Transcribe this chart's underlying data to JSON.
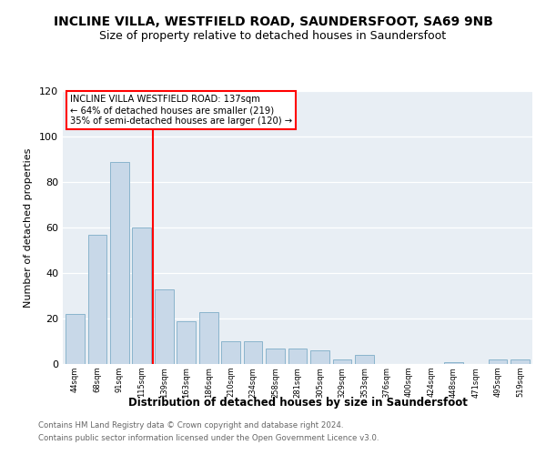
{
  "title": "INCLINE VILLA, WESTFIELD ROAD, SAUNDERSFOOT, SA69 9NB",
  "subtitle": "Size of property relative to detached houses in Saundersfoot",
  "xlabel": "Distribution of detached houses by size in Saundersfoot",
  "ylabel": "Number of detached properties",
  "bar_labels": [
    "44sqm",
    "68sqm",
    "91sqm",
    "115sqm",
    "139sqm",
    "163sqm",
    "186sqm",
    "210sqm",
    "234sqm",
    "258sqm",
    "281sqm",
    "305sqm",
    "329sqm",
    "353sqm",
    "376sqm",
    "400sqm",
    "424sqm",
    "448sqm",
    "471sqm",
    "495sqm",
    "519sqm"
  ],
  "bar_values": [
    22,
    57,
    89,
    60,
    33,
    19,
    23,
    10,
    10,
    7,
    7,
    6,
    2,
    4,
    0,
    0,
    0,
    1,
    0,
    2,
    2
  ],
  "bar_color": "#c8d8e8",
  "bar_edge_color": "#8ab4cc",
  "ylim": [
    0,
    120
  ],
  "yticks": [
    0,
    20,
    40,
    60,
    80,
    100,
    120
  ],
  "property_line_idx": 4,
  "property_line_label": "INCLINE VILLA WESTFIELD ROAD: 137sqm",
  "annotation_line1": "← 64% of detached houses are smaller (219)",
  "annotation_line2": "35% of semi-detached houses are larger (120) →",
  "footer1": "Contains HM Land Registry data © Crown copyright and database right 2024.",
  "footer2": "Contains public sector information licensed under the Open Government Licence v3.0.",
  "bg_color": "#ffffff",
  "plot_bg_color": "#e8eef4",
  "grid_color": "#ffffff",
  "title_fontsize": 10,
  "subtitle_fontsize": 9
}
